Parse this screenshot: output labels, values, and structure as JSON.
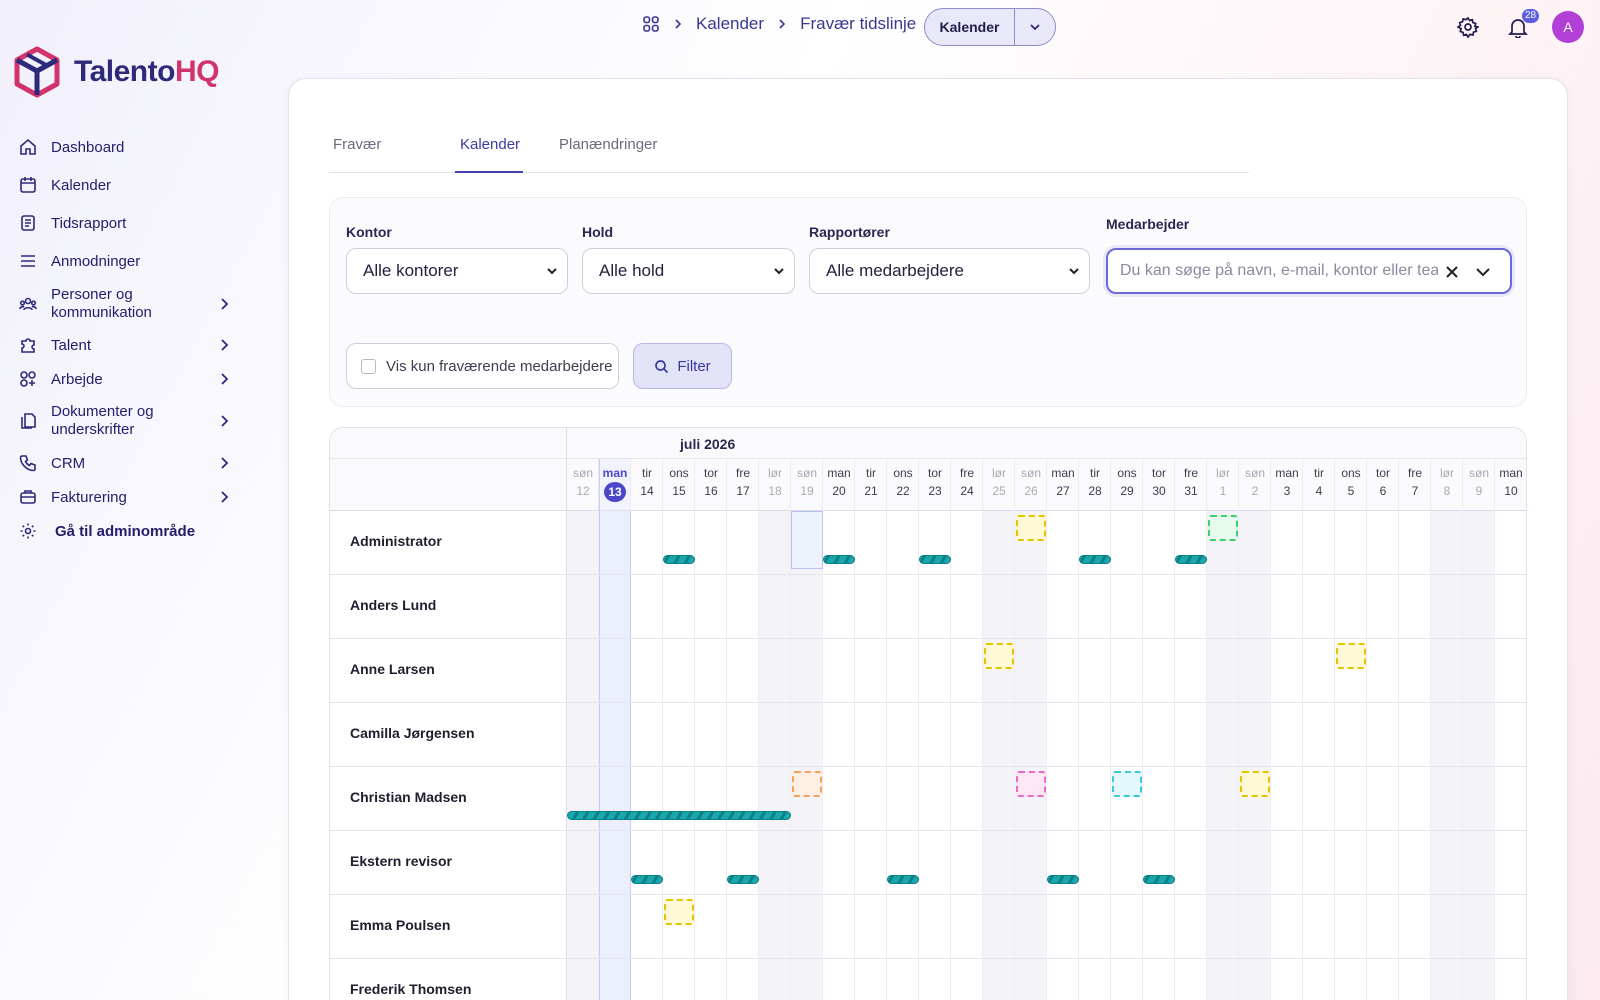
{
  "brand": {
    "part1": "Talento",
    "part2": "HQ"
  },
  "nav": [
    {
      "label": "Dashboard",
      "icon": "home-icon",
      "chevron": false
    },
    {
      "label": "Kalender",
      "icon": "calendar-icon",
      "chevron": false
    },
    {
      "label": "Tidsrapport",
      "icon": "timesheet-icon",
      "chevron": false
    },
    {
      "label": "Anmodninger",
      "icon": "list-icon",
      "chevron": false
    },
    {
      "label": "Personer og kommunikation",
      "icon": "people-icon",
      "chevron": true
    },
    {
      "label": "Talent",
      "icon": "puzzle-icon",
      "chevron": true
    },
    {
      "label": "Arbejde",
      "icon": "apps-icon",
      "chevron": true
    },
    {
      "label": "Dokumenter og underskrifter",
      "icon": "documents-icon",
      "chevron": true
    },
    {
      "label": "CRM",
      "icon": "phone-icon",
      "chevron": true
    },
    {
      "label": "Fakturering",
      "icon": "billing-icon",
      "chevron": true
    },
    {
      "label": "Gå til adminområde",
      "icon": "gear-icon",
      "chevron": false
    }
  ],
  "breadcrumb": {
    "items": [
      "Kalender",
      "Fravær tidslinje"
    ]
  },
  "view_switch": {
    "label": "Kalender"
  },
  "notifications": {
    "count": "28"
  },
  "user": {
    "initial": "A"
  },
  "tabs": [
    {
      "label": "Fravær",
      "active": false
    },
    {
      "label": "Kalender",
      "active": true
    },
    {
      "label": "Planændringer",
      "active": false
    }
  ],
  "filters": {
    "office": {
      "label": "Kontor",
      "value": "Alle kontorer"
    },
    "team": {
      "label": "Hold",
      "value": "Alle hold"
    },
    "reporters": {
      "label": "Rapportører",
      "value": "Alle medarbejdere"
    },
    "employee": {
      "label": "Medarbejder",
      "placeholder": "Du kan søge på navn, e-mail, kontor eller team"
    },
    "only_absent": {
      "label": "Vis kun fraværende medarbejdere",
      "checked": false
    },
    "filter_button": "Filter"
  },
  "calendar": {
    "month_label": "juli 2026",
    "today_index": 1,
    "days": [
      {
        "dow": "søn",
        "num": "12",
        "weekend": true
      },
      {
        "dow": "man",
        "num": "13",
        "weekend": false
      },
      {
        "dow": "tir",
        "num": "14",
        "weekend": false
      },
      {
        "dow": "ons",
        "num": "15",
        "weekend": false
      },
      {
        "dow": "tor",
        "num": "16",
        "weekend": false
      },
      {
        "dow": "fre",
        "num": "17",
        "weekend": false
      },
      {
        "dow": "lør",
        "num": "18",
        "weekend": true
      },
      {
        "dow": "søn",
        "num": "19",
        "weekend": true
      },
      {
        "dow": "man",
        "num": "20",
        "weekend": false
      },
      {
        "dow": "tir",
        "num": "21",
        "weekend": false
      },
      {
        "dow": "ons",
        "num": "22",
        "weekend": false
      },
      {
        "dow": "tor",
        "num": "23",
        "weekend": false
      },
      {
        "dow": "fre",
        "num": "24",
        "weekend": false
      },
      {
        "dow": "lør",
        "num": "25",
        "weekend": true
      },
      {
        "dow": "søn",
        "num": "26",
        "weekend": true
      },
      {
        "dow": "man",
        "num": "27",
        "weekend": false
      },
      {
        "dow": "tir",
        "num": "28",
        "weekend": false
      },
      {
        "dow": "ons",
        "num": "29",
        "weekend": false
      },
      {
        "dow": "tor",
        "num": "30",
        "weekend": false
      },
      {
        "dow": "fre",
        "num": "31",
        "weekend": false
      },
      {
        "dow": "lør",
        "num": "1",
        "weekend": true
      },
      {
        "dow": "søn",
        "num": "2",
        "weekend": true
      },
      {
        "dow": "man",
        "num": "3",
        "weekend": false
      },
      {
        "dow": "tir",
        "num": "4",
        "weekend": false
      },
      {
        "dow": "ons",
        "num": "5",
        "weekend": false
      },
      {
        "dow": "tor",
        "num": "6",
        "weekend": false
      },
      {
        "dow": "fre",
        "num": "7",
        "weekend": false
      },
      {
        "dow": "lør",
        "num": "8",
        "weekend": true
      },
      {
        "dow": "søn",
        "num": "9",
        "weekend": true
      },
      {
        "dow": "man",
        "num": "10",
        "weekend": false
      }
    ],
    "employees": [
      {
        "name": "Administrator",
        "bars": [
          {
            "start": 3,
            "end": 3
          },
          {
            "start": 8,
            "end": 8
          },
          {
            "start": 11,
            "end": 11
          },
          {
            "start": 16,
            "end": 16
          },
          {
            "start": 19,
            "end": 19
          }
        ],
        "markers": [
          {
            "day": 14,
            "color": "#e9c400",
            "fill": "#fff9d6"
          },
          {
            "day": 20,
            "color": "#3fcf72",
            "fill": "#e6faee"
          }
        ]
      },
      {
        "name": "Anders Lund",
        "bars": [],
        "markers": []
      },
      {
        "name": "Anne Larsen",
        "bars": [],
        "markers": [
          {
            "day": 13,
            "color": "#e9c400",
            "fill": "#fff9d6"
          },
          {
            "day": 24,
            "color": "#e9c400",
            "fill": "#fff9d6"
          }
        ]
      },
      {
        "name": "Camilla Jørgensen",
        "bars": [],
        "markers": []
      },
      {
        "name": "Christian Madsen",
        "bars": [
          {
            "start": 0,
            "end": 6
          }
        ],
        "markers": [
          {
            "day": 7,
            "color": "#f4a25c",
            "fill": "#fff0e3"
          },
          {
            "day": 14,
            "color": "#ec6cc4",
            "fill": "#fde7f4"
          },
          {
            "day": 17,
            "color": "#3fc8dc",
            "fill": "#e3f8fb"
          },
          {
            "day": 21,
            "color": "#e9c400",
            "fill": "#fff9d6"
          }
        ]
      },
      {
        "name": "Ekstern revisor",
        "bars": [
          {
            "start": 2,
            "end": 2
          },
          {
            "start": 5,
            "end": 5
          },
          {
            "start": 10,
            "end": 10
          },
          {
            "start": 15,
            "end": 15
          },
          {
            "start": 18,
            "end": 18
          }
        ],
        "markers": []
      },
      {
        "name": "Emma Poulsen",
        "bars": [],
        "markers": [
          {
            "day": 3,
            "color": "#e9c400",
            "fill": "#fff9d6"
          }
        ]
      },
      {
        "name": "Frederik Thomsen",
        "bars": [],
        "markers": []
      }
    ]
  }
}
